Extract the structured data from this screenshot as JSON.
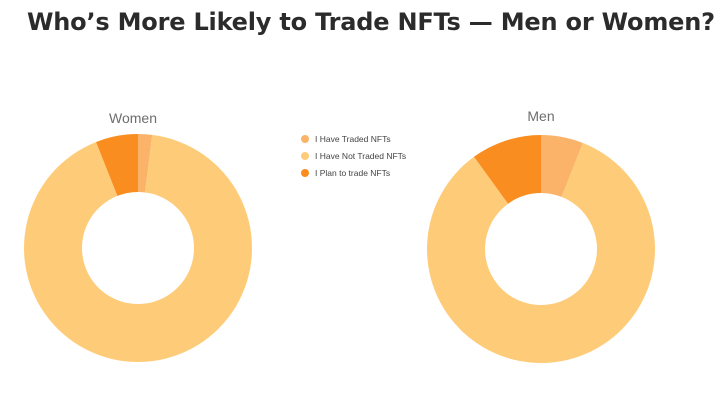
{
  "title": "Who’s More Likely to Trade NFTs — Men or Women?",
  "colors": {
    "traded": "#fbb36a",
    "not_traded": "#fecc79",
    "plan": "#f98d1f",
    "background": "#ffffff"
  },
  "chart_data": {
    "type": "pie",
    "variant": "donut",
    "title": "Who’s More Likely to Trade NFTs — Men or Women?",
    "categories": [
      "I Have Traded NFTs",
      "I Have Not Traded NFTs",
      "I Plan to trade NFTs"
    ],
    "legend": {
      "placement": "center",
      "items": [
        {
          "label": "I Have Traded NFTs",
          "color": "#fbb36a"
        },
        {
          "label": "I Have Not Traded NFTs",
          "color": "#fecc79"
        },
        {
          "label": "I Plan to trade NFTs",
          "color": "#f98d1f"
        }
      ]
    },
    "series": [
      {
        "name": "Women",
        "values": [
          2,
          92,
          6
        ]
      },
      {
        "name": "Men",
        "values": [
          6,
          84,
          10
        ]
      }
    ]
  }
}
